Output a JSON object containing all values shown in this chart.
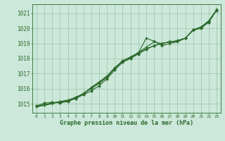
{
  "x": [
    0,
    1,
    2,
    3,
    4,
    5,
    6,
    7,
    8,
    9,
    10,
    11,
    12,
    13,
    14,
    15,
    16,
    17,
    18,
    19,
    20,
    21,
    22,
    23
  ],
  "line1": [
    1014.8,
    1014.9,
    1015.05,
    1015.1,
    1015.2,
    1015.45,
    1015.65,
    1016.0,
    1016.35,
    1016.75,
    1017.35,
    1017.85,
    1018.1,
    1018.35,
    1019.35,
    1019.15,
    1018.85,
    1019.0,
    1019.1,
    1019.35,
    1019.9,
    1020.05,
    1020.5,
    1021.25
  ],
  "line2": [
    1014.8,
    1014.9,
    1015.0,
    1015.15,
    1015.25,
    1015.4,
    1015.7,
    1016.05,
    1016.4,
    1016.8,
    1017.35,
    1017.8,
    1018.05,
    1018.35,
    1018.65,
    1018.85,
    1019.0,
    1019.1,
    1019.15,
    1019.35,
    1019.85,
    1020.05,
    1020.45,
    1021.2
  ],
  "line3": [
    1014.85,
    1015.05,
    1015.1,
    1015.05,
    1015.15,
    1015.35,
    1015.6,
    1015.85,
    1016.2,
    1016.65,
    1017.25,
    1017.75,
    1018.0,
    1018.3,
    1018.6,
    1018.85,
    1019.0,
    1019.1,
    1019.15,
    1019.35,
    1019.9,
    1020.0,
    1020.4,
    1021.2
  ],
  "line4": [
    1014.85,
    1014.95,
    1015.05,
    1015.15,
    1015.2,
    1015.35,
    1015.65,
    1016.1,
    1016.45,
    1016.85,
    1017.4,
    1017.85,
    1018.1,
    1018.4,
    1018.75,
    1019.1,
    1019.0,
    1019.1,
    1019.2,
    1019.35,
    1019.9,
    1020.1,
    1020.5,
    1021.2
  ],
  "line_color": "#2d6a2d",
  "bg_color": "#cce8da",
  "grid_color": "#99c4ab",
  "axis_color": "#2d6a2d",
  "ylabel_ticks": [
    1015,
    1016,
    1017,
    1018,
    1019,
    1020,
    1021
  ],
  "ylim": [
    1014.4,
    1021.6
  ],
  "xlim": [
    -0.5,
    23.5
  ],
  "xlabel": "Graphe pression niveau de la mer (hPa)",
  "linewidth": 0.8
}
